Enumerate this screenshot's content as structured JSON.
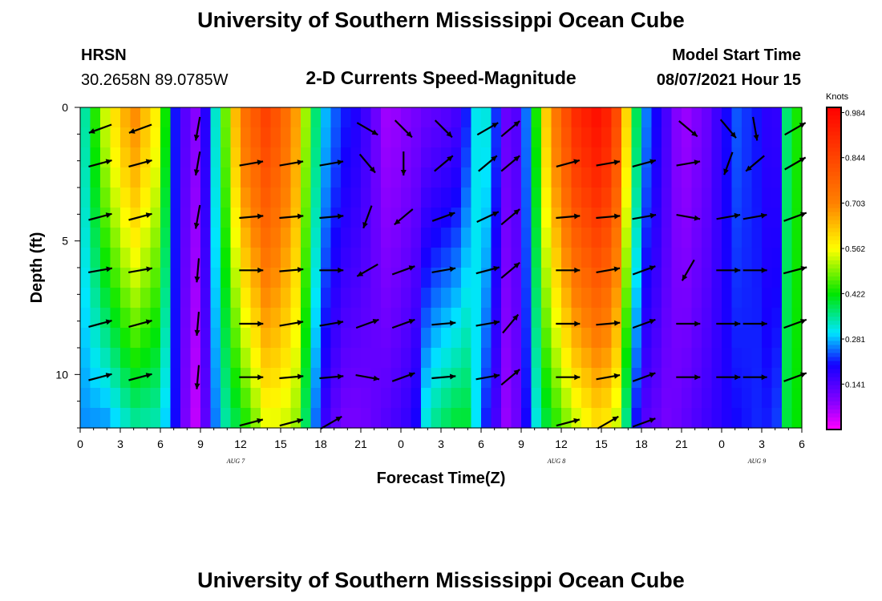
{
  "header": {
    "title": "University of Southern Mississippi Ocean Cube",
    "station": "HRSN",
    "location": "30.2658N  89.0785W",
    "subtitle": "2-D Currents Speed-Magnitude",
    "model_start_label": "Model Start Time",
    "model_start_value": "08/07/2021 Hour 15"
  },
  "footer": {
    "title": "University of Southern Mississippi Ocean Cube"
  },
  "chart_data": {
    "type": "heatmap",
    "title": "2-D Currents Speed-Magnitude",
    "xlabel": "Forecast Time(Z)",
    "ylabel": "Depth (ft)",
    "xlim": [
      0,
      54
    ],
    "ylim": [
      12,
      0
    ],
    "x_ticks": [
      0,
      3,
      6,
      9,
      12,
      15,
      18,
      21,
      24,
      27,
      30,
      33,
      36,
      39,
      42,
      45,
      48,
      51,
      54
    ],
    "x_tick_labels": [
      "0",
      "3",
      "6",
      "9",
      "12",
      "15",
      "18",
      "21",
      "0",
      "3",
      "6",
      "9",
      "12",
      "15",
      "18",
      "21",
      "0",
      "3",
      "6"
    ],
    "y_ticks": [
      0,
      5,
      10
    ],
    "y_tick_labels": [
      "0",
      "5",
      "10"
    ],
    "date_labels": [
      {
        "x": 12,
        "text": "AUG 7"
      },
      {
        "x": 36,
        "text": "AUG 8"
      },
      {
        "x": 51,
        "text": "AUG 9"
      }
    ],
    "colorbar": {
      "unit": "Knots",
      "min": 0.0,
      "max": 1.0,
      "tick_values": [
        0.984,
        0.844,
        0.703,
        0.562,
        0.422,
        0.281,
        0.141
      ],
      "tick_labels": [
        "0.984",
        "0.844",
        "0.703",
        "0.562",
        "0.422",
        "0.281",
        "0.141"
      ]
    },
    "time_speed_surface": [
      {
        "t": 0,
        "surface": 0.3,
        "bottom": 0.26
      },
      {
        "t": 2,
        "surface": 0.55,
        "bottom": 0.26
      },
      {
        "t": 4,
        "surface": 0.7,
        "bottom": 0.34
      },
      {
        "t": 6,
        "surface": 0.55,
        "bottom": 0.33
      },
      {
        "t": 7,
        "surface": 0.22,
        "bottom": 0.22
      },
      {
        "t": 8,
        "surface": 0.12,
        "bottom": 0.08
      },
      {
        "t": 8.5,
        "surface": 0.07,
        "bottom": 0.03
      },
      {
        "t": 9.5,
        "surface": 0.2,
        "bottom": 0.14
      },
      {
        "t": 10.5,
        "surface": 0.4,
        "bottom": 0.32
      },
      {
        "t": 12,
        "surface": 0.72,
        "bottom": 0.4
      },
      {
        "t": 14,
        "surface": 0.86,
        "bottom": 0.55
      },
      {
        "t": 16,
        "surface": 0.7,
        "bottom": 0.52
      },
      {
        "t": 17,
        "surface": 0.48,
        "bottom": 0.35
      },
      {
        "t": 18,
        "surface": 0.3,
        "bottom": 0.18
      },
      {
        "t": 19.5,
        "surface": 0.22,
        "bottom": 0.1
      },
      {
        "t": 21,
        "surface": 0.18,
        "bottom": 0.1
      },
      {
        "t": 23,
        "surface": 0.06,
        "bottom": 0.14
      },
      {
        "t": 25,
        "surface": 0.1,
        "bottom": 0.18
      },
      {
        "t": 26,
        "surface": 0.12,
        "bottom": 0.34
      },
      {
        "t": 28,
        "surface": 0.14,
        "bottom": 0.4
      },
      {
        "t": 29,
        "surface": 0.22,
        "bottom": 0.4
      },
      {
        "t": 30,
        "surface": 0.36,
        "bottom": 0.24
      },
      {
        "t": 31,
        "surface": 0.24,
        "bottom": 0.16
      },
      {
        "t": 32,
        "surface": 0.1,
        "bottom": 0.06
      },
      {
        "t": 33,
        "surface": 0.16,
        "bottom": 0.14
      },
      {
        "t": 34,
        "surface": 0.4,
        "bottom": 0.3
      },
      {
        "t": 35,
        "surface": 0.65,
        "bottom": 0.4
      },
      {
        "t": 37,
        "surface": 0.9,
        "bottom": 0.52
      },
      {
        "t": 39,
        "surface": 0.98,
        "bottom": 0.6
      },
      {
        "t": 40.5,
        "surface": 0.78,
        "bottom": 0.5
      },
      {
        "t": 41,
        "surface": 0.55,
        "bottom": 0.3
      },
      {
        "t": 42,
        "surface": 0.28,
        "bottom": 0.14
      },
      {
        "t": 44,
        "surface": 0.14,
        "bottom": 0.1
      },
      {
        "t": 45,
        "surface": 0.06,
        "bottom": 0.12
      },
      {
        "t": 47,
        "surface": 0.12,
        "bottom": 0.16
      },
      {
        "t": 49,
        "surface": 0.24,
        "bottom": 0.2
      },
      {
        "t": 51,
        "surface": 0.2,
        "bottom": 0.22
      },
      {
        "t": 52,
        "surface": 0.14,
        "bottom": 0.2
      },
      {
        "t": 53,
        "surface": 0.4,
        "bottom": 0.42
      },
      {
        "t": 54,
        "surface": 0.45,
        "bottom": 0.42
      }
    ],
    "depth_levels_ft": [
      0.8,
      2.1,
      4.1,
      6.1,
      8.1,
      10.1,
      11.8
    ],
    "vector_times": [
      1.5,
      4.5,
      8.8,
      12.8,
      15.8,
      18.8,
      21.5,
      24.2,
      27.2,
      30.5,
      32.2,
      36.5,
      39.5,
      42.2,
      45.5,
      48.5,
      50.5,
      53.5
    ],
    "vector_directions_deg": [
      [
        200,
        200,
        260,
        10,
        10,
        15,
        330,
        315,
        315,
        30,
        40,
        15,
        10,
        30,
        320,
        310,
        280,
        30
      ],
      [
        15,
        15,
        260,
        10,
        10,
        10,
        310,
        270,
        40,
        40,
        40,
        15,
        10,
        15,
        10,
        250,
        220,
        30
      ],
      [
        15,
        15,
        260,
        5,
        5,
        5,
        250,
        220,
        20,
        25,
        40,
        5,
        5,
        10,
        350,
        10,
        10,
        20
      ],
      [
        10,
        10,
        265,
        0,
        5,
        0,
        210,
        20,
        10,
        15,
        40,
        0,
        10,
        20,
        240,
        0,
        0,
        15
      ],
      [
        15,
        15,
        265,
        0,
        10,
        10,
        20,
        20,
        5,
        10,
        50,
        0,
        5,
        20,
        0,
        0,
        0,
        20
      ],
      [
        15,
        15,
        265,
        0,
        5,
        5,
        350,
        20,
        5,
        10,
        40,
        0,
        10,
        20,
        0,
        0,
        0,
        20
      ],
      [
        10,
        10,
        270,
        15,
        15,
        30,
        330,
        15,
        0,
        0,
        0,
        15,
        30,
        20,
        0,
        0,
        0,
        0
      ]
    ],
    "vector_present": [
      [
        1,
        1,
        1,
        0,
        0,
        0,
        1,
        1,
        1,
        1,
        1,
        0,
        0,
        0,
        1,
        1,
        1,
        1
      ],
      [
        1,
        1,
        1,
        1,
        1,
        1,
        1,
        1,
        1,
        1,
        1,
        1,
        1,
        1,
        1,
        1,
        1,
        1
      ],
      [
        1,
        1,
        1,
        1,
        1,
        1,
        1,
        1,
        1,
        1,
        1,
        1,
        1,
        1,
        1,
        1,
        1,
        1
      ],
      [
        1,
        1,
        1,
        1,
        1,
        1,
        1,
        1,
        1,
        1,
        1,
        1,
        1,
        1,
        1,
        1,
        1,
        1
      ],
      [
        1,
        1,
        1,
        1,
        1,
        1,
        1,
        1,
        1,
        1,
        1,
        1,
        1,
        1,
        1,
        1,
        1,
        1
      ],
      [
        1,
        1,
        1,
        1,
        1,
        1,
        1,
        1,
        1,
        1,
        1,
        1,
        1,
        1,
        1,
        1,
        1,
        1
      ],
      [
        0,
        0,
        0,
        1,
        1,
        1,
        0,
        0,
        0,
        0,
        0,
        1,
        1,
        1,
        0,
        0,
        0,
        0
      ]
    ]
  }
}
